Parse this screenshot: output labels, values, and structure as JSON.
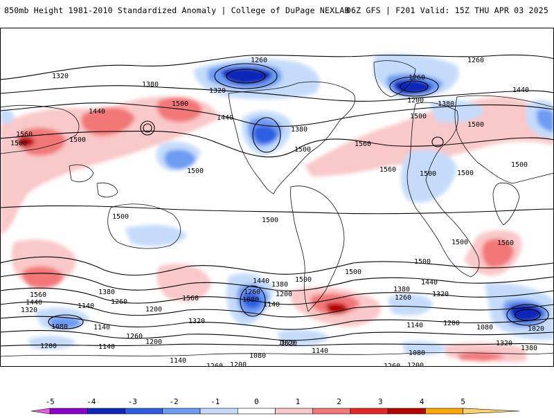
{
  "header": {
    "title": "850mb Height 1981-2010 Standardized Anomaly | College of DuPage NEXLAB",
    "run_info": "06Z GFS | F201 Valid: 15Z THU APR 03 2025"
  },
  "colorbar": {
    "ticks": [
      "-5",
      "-4",
      "-3",
      "-2",
      "-1",
      "0",
      "1",
      "2",
      "3",
      "4",
      "5"
    ],
    "colors": [
      "#e060e0",
      "#8a00c8",
      "#1028b8",
      "#2e5ee0",
      "#6e9cf2",
      "#c4dcfa",
      "#ffffff",
      "#f9c8c8",
      "#f27878",
      "#e82828",
      "#b80000",
      "#ffa800",
      "#ffd070"
    ]
  },
  "contour_labels": [
    {
      "text": "1320"
    },
    {
      "text": "1380"
    },
    {
      "text": "1260"
    },
    {
      "text": "1320"
    },
    {
      "text": "1260"
    },
    {
      "text": "1260"
    },
    {
      "text": "1200"
    },
    {
      "text": "1380"
    },
    {
      "text": "1440"
    },
    {
      "text": "1440"
    },
    {
      "text": "1500"
    },
    {
      "text": "1440"
    },
    {
      "text": "1500"
    },
    {
      "text": "1560"
    },
    {
      "text": "1500"
    },
    {
      "text": "1380"
    },
    {
      "text": "1500"
    },
    {
      "text": "1560"
    },
    {
      "text": "1560"
    },
    {
      "text": "1500"
    },
    {
      "text": "1500"
    },
    {
      "text": "1500"
    },
    {
      "text": "1500"
    },
    {
      "text": "1500"
    },
    {
      "text": "1500"
    },
    {
      "text": "1500"
    },
    {
      "text": "1500"
    },
    {
      "text": "1500"
    },
    {
      "text": "1500"
    },
    {
      "text": "1560"
    },
    {
      "text": "1500"
    },
    {
      "text": "1500"
    },
    {
      "text": "1440"
    },
    {
      "text": "1560"
    },
    {
      "text": "1440"
    },
    {
      "text": "1320"
    },
    {
      "text": "1380"
    },
    {
      "text": "1260"
    },
    {
      "text": "1140"
    },
    {
      "text": "1200"
    },
    {
      "text": "1080"
    },
    {
      "text": "1140"
    },
    {
      "text": "1260"
    },
    {
      "text": "1200"
    },
    {
      "text": "1320"
    },
    {
      "text": "1560"
    },
    {
      "text": "1440"
    },
    {
      "text": "1380"
    },
    {
      "text": "1260"
    },
    {
      "text": "1080"
    },
    {
      "text": "1200"
    },
    {
      "text": "1140"
    },
    {
      "text": "1380"
    },
    {
      "text": "1320"
    },
    {
      "text": "1260"
    },
    {
      "text": "1140"
    },
    {
      "text": "1200"
    },
    {
      "text": "1080"
    },
    {
      "text": "1020"
    },
    {
      "text": "1320"
    },
    {
      "text": "1380"
    },
    {
      "text": "1200"
    },
    {
      "text": "1140"
    },
    {
      "text": "1080"
    },
    {
      "text": "1020"
    },
    {
      "text": "1140"
    },
    {
      "text": "1260"
    },
    {
      "text": "1200"
    },
    {
      "text": "1080"
    },
    {
      "text": "1260"
    },
    {
      "text": "1320"
    },
    {
      "text": "1140"
    },
    {
      "text": "1200"
    },
    {
      "text": "1020"
    }
  ]
}
